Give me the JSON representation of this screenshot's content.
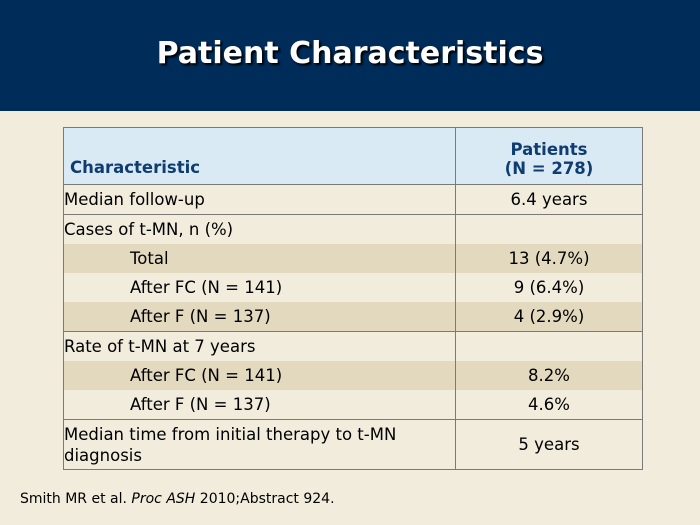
{
  "slide": {
    "title": "Patient Characteristics"
  },
  "table": {
    "header": {
      "col1": "Characteristic",
      "col2_line1": "Patients",
      "col2_line2": "(N = 278)"
    },
    "rows": [
      {
        "label": "Median follow-up",
        "value": "6.4 years"
      },
      {
        "label": "Cases of t-MN, n (%)",
        "value": ""
      },
      {
        "label": "Total",
        "value": "13 (4.7%)"
      },
      {
        "label": "After FC (N = 141)",
        "value": "9 (6.4%)"
      },
      {
        "label": "After F (N = 137)",
        "value": "4 (2.9%)"
      },
      {
        "label": "Rate of t-MN at 7 years",
        "value": ""
      },
      {
        "label": "After FC (N = 141)",
        "value": "8.2%"
      },
      {
        "label": "After F (N = 137)",
        "value": "4.6%"
      },
      {
        "label": "Median time from initial therapy to t-MN diagnosis",
        "value": "5 years"
      }
    ]
  },
  "footnote": {
    "authors": "Smith MR et al.",
    "journal": "Proc ASH",
    "rest": "2010;Abstract 924."
  },
  "colors": {
    "header_band": "#002c5a",
    "background": "#f1ecdc",
    "table_header": "#d9eaf5",
    "shaded_row": "#e3d9bf"
  }
}
